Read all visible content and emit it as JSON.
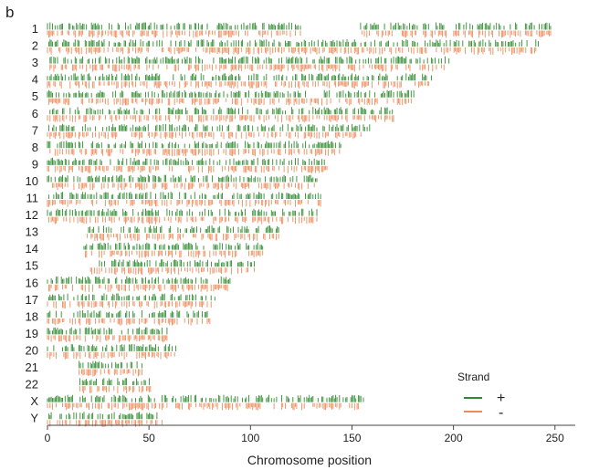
{
  "chart_data": {
    "type": "scatter",
    "panel_label": "b",
    "xlabel": "Chromosome position",
    "xlim": [
      0,
      260
    ],
    "xticks": [
      0,
      50,
      100,
      150,
      200,
      250
    ],
    "xtick_labels": [
      "0",
      "50",
      "100",
      "150",
      "200",
      "250"
    ],
    "legend": {
      "title": "Strand",
      "placement": "bottom-right",
      "entries": [
        {
          "label": "+",
          "color": "#2e8b2e"
        },
        {
          "label": "-",
          "color": "#f08a5a"
        }
      ]
    },
    "colors": {
      "plus": "#2e8b2e",
      "minus": "#f08a5a"
    },
    "chromosomes": [
      {
        "name": "1",
        "length": 248,
        "segments": [
          [
            0,
            125
          ],
          [
            153,
            248
          ]
        ]
      },
      {
        "name": "2",
        "length": 242,
        "segments": [
          [
            0,
            242
          ]
        ]
      },
      {
        "name": "3",
        "length": 198,
        "segments": [
          [
            0,
            198
          ]
        ]
      },
      {
        "name": "4",
        "length": 190,
        "segments": [
          [
            0,
            190
          ]
        ]
      },
      {
        "name": "5",
        "length": 181,
        "segments": [
          [
            0,
            181
          ]
        ]
      },
      {
        "name": "6",
        "length": 171,
        "segments": [
          [
            0,
            171
          ]
        ]
      },
      {
        "name": "7",
        "length": 159,
        "segments": [
          [
            0,
            159
          ]
        ]
      },
      {
        "name": "8",
        "length": 145,
        "segments": [
          [
            0,
            145
          ]
        ]
      },
      {
        "name": "9",
        "length": 138,
        "segments": [
          [
            0,
            138
          ]
        ]
      },
      {
        "name": "10",
        "length": 134,
        "segments": [
          [
            0,
            134
          ]
        ]
      },
      {
        "name": "11",
        "length": 135,
        "segments": [
          [
            0,
            135
          ]
        ]
      },
      {
        "name": "12",
        "length": 133,
        "segments": [
          [
            0,
            133
          ]
        ]
      },
      {
        "name": "13",
        "length": 114,
        "segments": [
          [
            19,
            114
          ]
        ]
      },
      {
        "name": "14",
        "length": 107,
        "segments": [
          [
            18,
            107
          ]
        ]
      },
      {
        "name": "15",
        "length": 102,
        "segments": [
          [
            20,
            102
          ]
        ]
      },
      {
        "name": "16",
        "length": 90,
        "segments": [
          [
            0,
            90
          ]
        ]
      },
      {
        "name": "17",
        "length": 83,
        "segments": [
          [
            0,
            83
          ]
        ]
      },
      {
        "name": "18",
        "length": 80,
        "segments": [
          [
            0,
            80
          ]
        ]
      },
      {
        "name": "19",
        "length": 59,
        "segments": [
          [
            0,
            59
          ]
        ]
      },
      {
        "name": "20",
        "length": 64,
        "segments": [
          [
            0,
            64
          ]
        ]
      },
      {
        "name": "21",
        "length": 47,
        "segments": [
          [
            15,
            47
          ]
        ]
      },
      {
        "name": "22",
        "length": 51,
        "segments": [
          [
            16,
            51
          ]
        ]
      },
      {
        "name": "X",
        "length": 156,
        "segments": [
          [
            0,
            156
          ]
        ]
      },
      {
        "name": "Y",
        "length": 57,
        "segments": [
          [
            0,
            57
          ]
        ]
      }
    ]
  }
}
